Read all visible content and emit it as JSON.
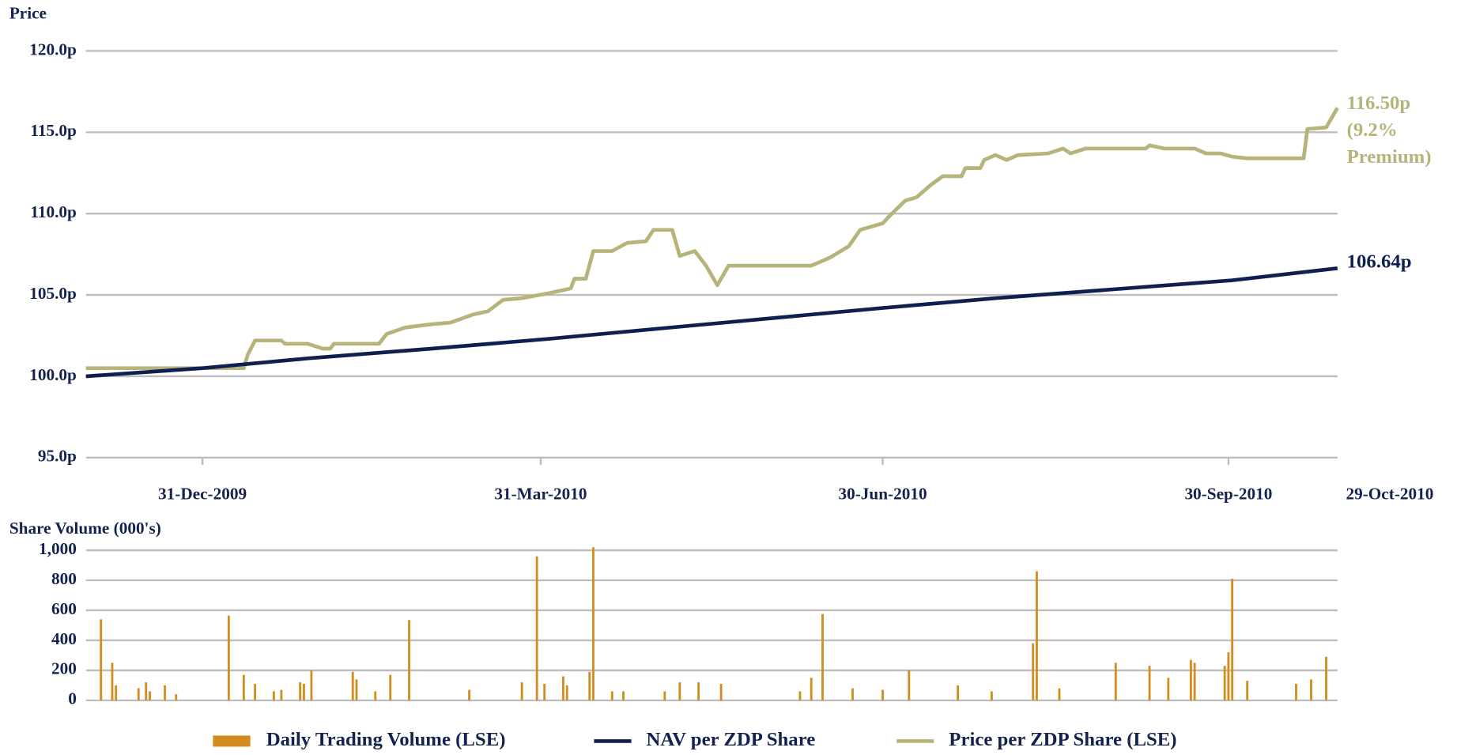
{
  "chart_data": [
    {
      "type": "line",
      "ylabel": "Price",
      "x": [
        "2009-11-30",
        "2009-12-31",
        "2010-01-11",
        "2010-01-12",
        "2010-01-14",
        "2010-01-21",
        "2010-01-22",
        "2010-01-28",
        "2010-02-01",
        "2010-02-03",
        "2010-02-04",
        "2010-02-16",
        "2010-02-18",
        "2010-02-23",
        "2010-03-02",
        "2010-03-07",
        "2010-03-13",
        "2010-03-17",
        "2010-03-21",
        "2010-03-26",
        "2010-04-02",
        "2010-04-08",
        "2010-04-09",
        "2010-04-12",
        "2010-04-14",
        "2010-04-19",
        "2010-04-23",
        "2010-04-28",
        "2010-04-30",
        "2010-05-05",
        "2010-05-07",
        "2010-05-11",
        "2010-05-14",
        "2010-05-17",
        "2010-05-20",
        "2010-06-11",
        "2010-06-16",
        "2010-06-21",
        "2010-06-24",
        "2010-06-30",
        "2010-07-02",
        "2010-07-06",
        "2010-07-09",
        "2010-07-13",
        "2010-07-16",
        "2010-07-21",
        "2010-07-22",
        "2010-07-26",
        "2010-07-27",
        "2010-07-30",
        "2010-08-02",
        "2010-08-05",
        "2010-08-13",
        "2010-08-17",
        "2010-08-19",
        "2010-08-23",
        "2010-09-08",
        "2010-09-09",
        "2010-09-13",
        "2010-09-21",
        "2010-09-24",
        "2010-09-28",
        "2010-10-01",
        "2010-10-05",
        "2010-10-20",
        "2010-10-21",
        "2010-10-26",
        "2010-10-29"
      ],
      "series": [
        {
          "name": "Price per ZDP Share (LSE)",
          "color": "#b6b47b",
          "values": [
            100.5,
            100.5,
            100.5,
            101.3,
            102.2,
            102.2,
            102.0,
            102.0,
            101.7,
            101.7,
            102.0,
            102.0,
            102.6,
            103.0,
            103.2,
            103.3,
            103.8,
            104.0,
            104.7,
            104.8,
            105.1,
            105.4,
            106.0,
            106.0,
            107.7,
            107.7,
            108.2,
            108.3,
            109.0,
            109.0,
            107.4,
            107.7,
            106.8,
            105.6,
            106.8,
            106.8,
            107.3,
            108.0,
            109.0,
            109.4,
            109.9,
            110.8,
            111.0,
            111.8,
            112.3,
            112.3,
            112.8,
            112.8,
            113.3,
            113.6,
            113.3,
            113.6,
            113.7,
            114.0,
            113.7,
            114.0,
            114.0,
            114.2,
            114.0,
            114.0,
            113.7,
            113.7,
            113.5,
            113.4,
            113.4,
            115.2,
            115.3,
            116.5
          ]
        },
        {
          "name": "NAV per ZDP Share",
          "color": "#0f1f50",
          "values": [
            100.0,
            100.5,
            null,
            null,
            null,
            null,
            null,
            101.1,
            null,
            null,
            null,
            null,
            null,
            null,
            101.7,
            null,
            null,
            null,
            null,
            null,
            102.3,
            null,
            null,
            null,
            null,
            null,
            null,
            null,
            102.9,
            null,
            null,
            null,
            null,
            null,
            null,
            null,
            null,
            null,
            null,
            104.2,
            null,
            null,
            null,
            null,
            null,
            null,
            null,
            null,
            null,
            104.8,
            null,
            null,
            null,
            null,
            null,
            null,
            null,
            null,
            null,
            null,
            null,
            null,
            105.9,
            null,
            null,
            null,
            null,
            106.64
          ]
        }
      ],
      "annotations": [
        {
          "lines": [
            "116.50p",
            "(9.2%",
            "Premium)"
          ],
          "color": "#b6b47b"
        },
        {
          "lines": [
            "106.64p"
          ],
          "color": "#0f1f50"
        }
      ],
      "xlim": [
        "2009-11-30",
        "2010-10-29"
      ],
      "xticks": [
        {
          "value": "2009-12-31",
          "label": "31-Dec-2009"
        },
        {
          "value": "2010-03-31",
          "label": "31-Mar-2010"
        },
        {
          "value": "2010-06-30",
          "label": "30-Jun-2010"
        },
        {
          "value": "2010-09-30",
          "label": "30-Sep-2010"
        },
        {
          "value": "2010-10-29",
          "label": "29-Oct-2010"
        }
      ],
      "ylim": [
        95,
        120
      ],
      "yticks": [
        {
          "value": 95,
          "label": "95.0p"
        },
        {
          "value": 100,
          "label": "100.0p"
        },
        {
          "value": 105,
          "label": "105.0p"
        },
        {
          "value": 110,
          "label": "110.0p"
        },
        {
          "value": 115,
          "label": "115.0p"
        },
        {
          "value": 120,
          "label": "120.0p"
        }
      ],
      "grid": true
    },
    {
      "type": "bar",
      "ylabel": "Share Volume (000's)",
      "series": [
        {
          "name": "Daily Trading Volume (LSE)",
          "color": "#d48b1f"
        }
      ],
      "x": [
        "2009-12-04",
        "2009-12-07",
        "2009-12-08",
        "2009-12-14",
        "2009-12-16",
        "2009-12-17",
        "2009-12-21",
        "2009-12-24",
        "2010-01-07",
        "2010-01-11",
        "2010-01-14",
        "2010-01-19",
        "2010-01-21",
        "2010-01-26",
        "2010-01-27",
        "2010-01-29",
        "2010-02-09",
        "2010-02-10",
        "2010-02-15",
        "2010-02-19",
        "2010-02-24",
        "2010-03-12",
        "2010-03-26",
        "2010-03-30",
        "2010-04-01",
        "2010-04-06",
        "2010-04-07",
        "2010-04-13",
        "2010-04-14",
        "2010-04-19",
        "2010-04-22",
        "2010-05-03",
        "2010-05-07",
        "2010-05-12",
        "2010-05-18",
        "2010-06-08",
        "2010-06-11",
        "2010-06-14",
        "2010-06-22",
        "2010-06-30",
        "2010-07-07",
        "2010-07-20",
        "2010-07-29",
        "2010-08-09",
        "2010-08-10",
        "2010-08-16",
        "2010-08-31",
        "2010-09-09",
        "2010-09-14",
        "2010-09-20",
        "2010-09-21",
        "2010-09-29",
        "2010-09-30",
        "2010-10-01",
        "2010-10-05",
        "2010-10-18",
        "2010-10-22",
        "2010-10-26"
      ],
      "values": [
        540,
        250,
        100,
        80,
        120,
        60,
        100,
        40,
        565,
        170,
        110,
        60,
        70,
        120,
        110,
        200,
        190,
        140,
        60,
        170,
        535,
        70,
        120,
        960,
        110,
        160,
        100,
        190,
        1020,
        60,
        60,
        60,
        120,
        120,
        110,
        60,
        150,
        575,
        80,
        70,
        200,
        100,
        60,
        380,
        860,
        80,
        250,
        230,
        150,
        270,
        250,
        230,
        320,
        810,
        130,
        110,
        140,
        290
      ],
      "xlim": [
        "2009-11-30",
        "2010-10-29"
      ],
      "ylim": [
        0,
        1000
      ],
      "yticks": [
        0,
        200,
        400,
        600,
        800,
        {
          "value": 1000,
          "label": "1,000"
        }
      ],
      "grid": true
    }
  ]
}
